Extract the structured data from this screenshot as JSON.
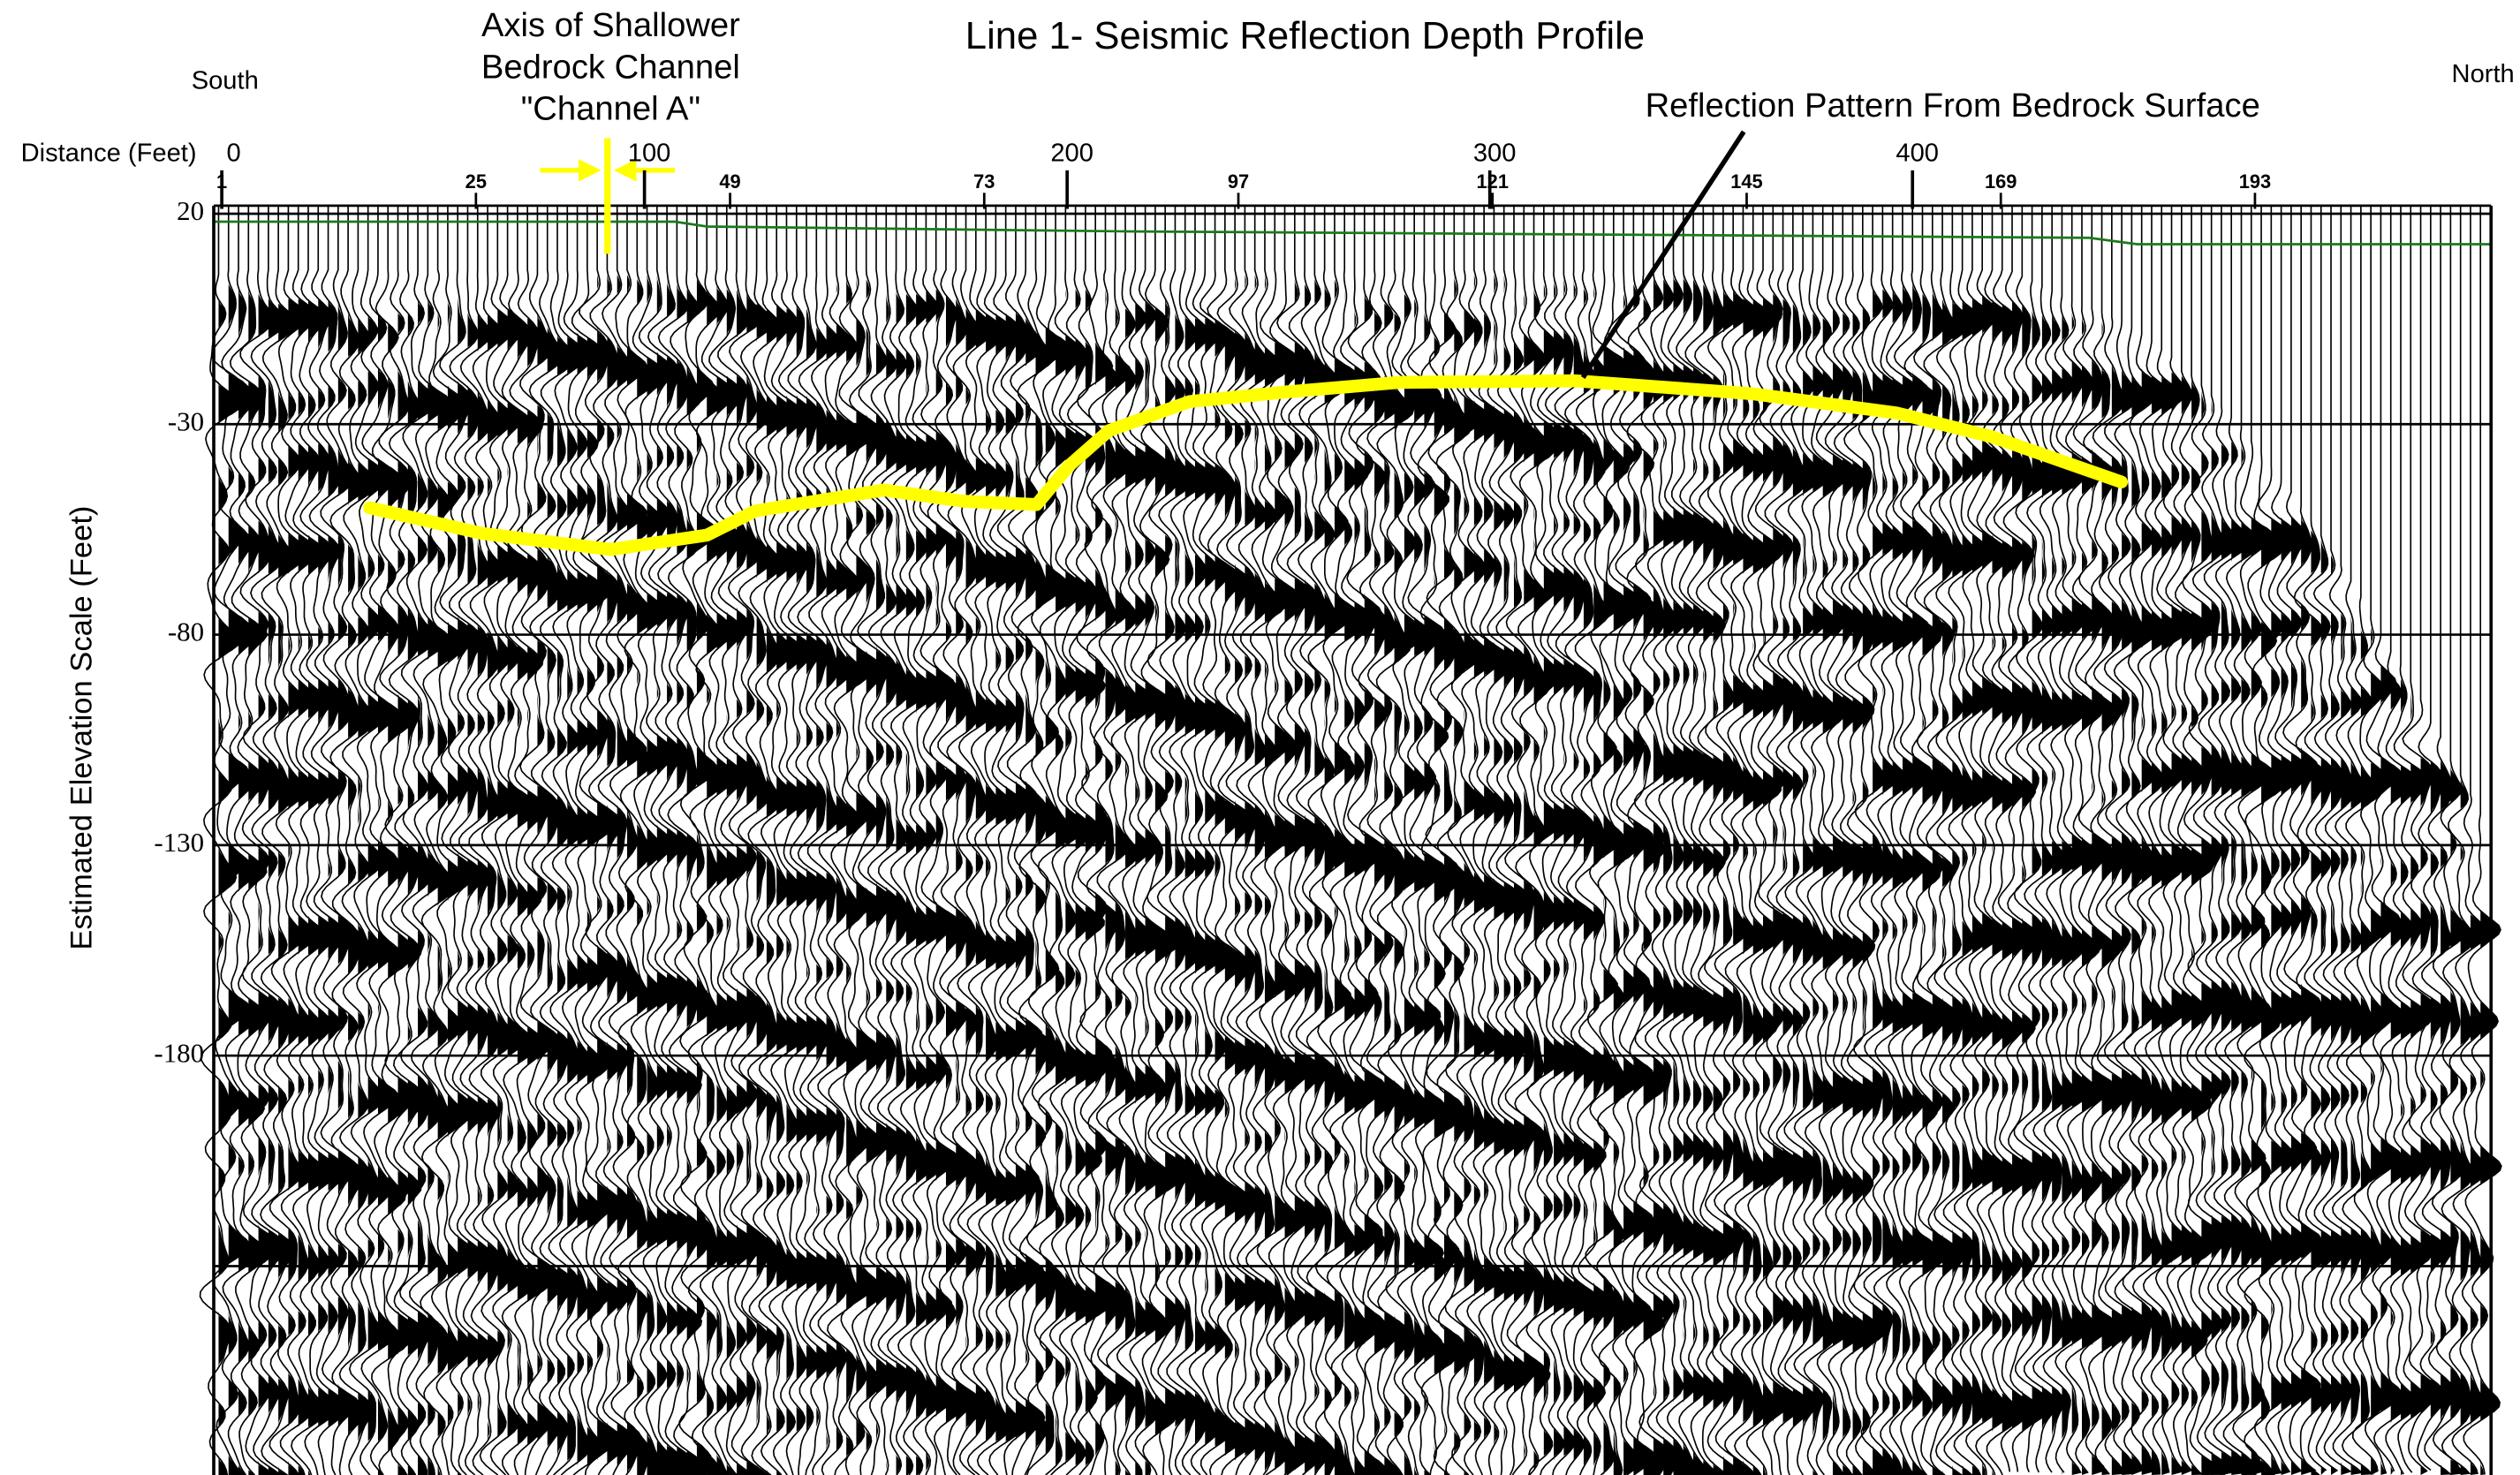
{
  "title": "Line 1- Seismic Reflection Depth Profile",
  "direction_left": "South",
  "direction_right": "North",
  "x_axis": {
    "label": "Distance (Feet)",
    "ticks": [
      0,
      100,
      200,
      300,
      400
    ]
  },
  "trace_axis": {
    "ticks": [
      1,
      25,
      49,
      73,
      97,
      121,
      145,
      169,
      193
    ]
  },
  "y_axis": {
    "label": "Estimated Elevation Scale (Feet)",
    "ticks": [
      20,
      -30,
      -80,
      -130,
      -180
    ]
  },
  "annotations": [
    {
      "lines": [
        "Axis of Shallower",
        "Bedrock Channel",
        "\"Channel A\""
      ]
    },
    {
      "text": "Reflection Pattern From Bedrock Surface"
    }
  ]
}
